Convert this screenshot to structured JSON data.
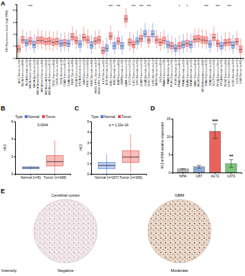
{
  "chart_data": [
    {
      "type": "box",
      "panel": "A",
      "y_label": "HK3 Expression Level (log2 TPM)",
      "categories": [
        "ACC.Tumor (n=79)",
        "BLCA.Tumor (n=408)",
        "BLCA.Normal (n=19)",
        "BRCA.Tumor (n=1093)",
        "BRCA.Normal (n=112)",
        "BRCA-Basal.Tumor (n=190)",
        "BRCA-Her2.Tumor (n=82)",
        "BRCA-LumA.Tumor (n=564)",
        "BRCA-LumB.Tumor (n=217)",
        "CESC.Tumor (n=304)",
        "CHOL.Tumor (n=36)",
        "CHOL.Normal (n=9)",
        "COAD.Tumor (n=457)",
        "COAD.Normal (n=41)",
        "DLBC.Tumor (n=48)",
        "ESCA.Tumor (n=184)",
        "ESCA.Normal (n=11)",
        "GBM.Tumor (n=153)",
        "HNSC.Tumor (n=520)",
        "HNSC.Normal (n=44)",
        "HNSC-HPV+.Tumor (n=97)",
        "HNSC-HPV-.Tumor (n=421)",
        "KICH.Tumor (n=66)",
        "KICH.Normal (n=25)",
        "KIRC.Tumor (n=533)",
        "KIRC.Normal (n=72)",
        "KIRP.Tumor (n=290)",
        "KIRP.Normal (n=32)",
        "LAML.Tumor (n=173)",
        "LGG.Tumor (n=516)",
        "LIHC.Tumor (n=371)",
        "LIHC.Normal (n=50)",
        "LUAD.Tumor (n=515)",
        "LUAD.Normal (n=59)",
        "LUSC.Tumor (n=501)",
        "LUSC.Normal (n=51)",
        "MESO.Tumor (n=87)",
        "OV.Tumor (n=303)",
        "PAAD.Tumor (n=178)",
        "PAAD.Normal (n=4)",
        "PCPG.Tumor (n=179)",
        "PCPG.Normal (n=3)",
        "PRAD.Tumor (n=497)",
        "PRAD.Normal (n=52)",
        "READ.Tumor (n=166)",
        "READ.Normal (n=10)",
        "SARC.Tumor (n=259)",
        "SKCM.Tumor (n=103)",
        "SKCM.Metastasis (n=368)",
        "STAD.Tumor (n=415)",
        "STAD.Normal (n=35)",
        "TGCT.Tumor (n=150)",
        "THCA.Tumor (n=501)",
        "THCA.Normal (n=59)",
        "THYM.Tumor (n=120)",
        "UCEC.Tumor (n=545)",
        "UCEC.Normal (n=35)",
        "UCS.Tumor (n=57)",
        "UVM.Tumor (n=80)"
      ],
      "low": [
        0.1,
        1.6,
        1.1,
        1.4,
        0.8,
        1.5,
        1.5,
        1.3,
        1.4,
        1.2,
        1.3,
        1.0,
        1.1,
        1.0,
        2.1,
        1.5,
        0.9,
        2.0,
        1.6,
        0.7,
        1.4,
        1.6,
        0.0,
        0.2,
        2.2,
        0.6,
        1.4,
        0.6,
        5.1,
        1.2,
        0.8,
        1.4,
        1.8,
        2.6,
        1.6,
        2.6,
        1.6,
        1.2,
        1.5,
        0.8,
        0.6,
        0.2,
        0.6,
        0.8,
        1.0,
        0.8,
        1.7,
        1.8,
        1.6,
        1.5,
        0.9,
        2.0,
        1.0,
        0.6,
        1.1,
        1.2,
        0.7,
        1.3,
        0.0
      ],
      "q1": [
        1.0,
        2.5,
        2.0,
        2.3,
        1.7,
        2.4,
        2.4,
        2.2,
        2.3,
        2.1,
        2.2,
        1.9,
        2.0,
        1.9,
        3.0,
        2.4,
        1.8,
        2.9,
        2.5,
        1.6,
        2.3,
        2.5,
        0.7,
        1.1,
        3.1,
        1.5,
        2.3,
        1.5,
        6.0,
        2.1,
        1.7,
        2.3,
        2.7,
        3.5,
        2.5,
        3.5,
        2.5,
        2.1,
        2.4,
        1.7,
        1.5,
        1.1,
        1.5,
        1.7,
        1.9,
        1.7,
        2.6,
        2.7,
        2.5,
        2.4,
        1.8,
        2.9,
        1.9,
        1.5,
        2.0,
        2.1,
        1.6,
        2.2,
        0.9
      ],
      "median": [
        1.5,
        3.0,
        2.5,
        2.8,
        2.2,
        2.9,
        2.9,
        2.7,
        2.8,
        2.6,
        2.7,
        2.4,
        2.5,
        2.4,
        3.5,
        2.9,
        2.3,
        3.4,
        3.0,
        2.1,
        2.8,
        3.0,
        1.2,
        1.6,
        3.6,
        2.0,
        2.8,
        2.0,
        6.5,
        2.6,
        2.2,
        2.8,
        3.2,
        4.0,
        3.0,
        4.0,
        3.0,
        2.6,
        2.9,
        2.2,
        2.0,
        1.6,
        2.0,
        2.2,
        2.4,
        2.2,
        3.1,
        3.2,
        3.0,
        2.9,
        2.3,
        3.4,
        2.4,
        2.0,
        2.5,
        2.6,
        2.1,
        2.7,
        1.4
      ],
      "q3": [
        2.1,
        3.6,
        3.1,
        3.4,
        2.8,
        3.5,
        3.5,
        3.3,
        3.4,
        3.2,
        3.3,
        3.0,
        3.1,
        3.0,
        4.1,
        3.5,
        2.9,
        4.0,
        3.6,
        2.7,
        3.4,
        3.6,
        1.8,
        2.2,
        4.2,
        2.6,
        3.4,
        2.6,
        7.1,
        3.2,
        2.8,
        3.4,
        3.8,
        4.6,
        3.6,
        4.6,
        3.6,
        3.2,
        3.5,
        2.8,
        2.6,
        2.2,
        2.6,
        2.8,
        3.0,
        2.8,
        3.7,
        3.8,
        3.6,
        3.5,
        2.9,
        4.0,
        3.0,
        2.6,
        3.1,
        3.2,
        2.7,
        3.3,
        2.0
      ],
      "high": [
        3.3,
        4.8,
        4.3,
        4.6,
        4.0,
        4.7,
        4.7,
        4.5,
        4.6,
        4.4,
        4.5,
        4.2,
        4.3,
        4.2,
        5.3,
        4.7,
        4.1,
        5.2,
        4.8,
        3.9,
        4.6,
        4.8,
        3.0,
        3.4,
        5.4,
        3.8,
        4.6,
        3.8,
        8.3,
        4.4,
        4.0,
        4.6,
        5.0,
        5.8,
        4.8,
        5.8,
        4.8,
        4.4,
        4.7,
        4.0,
        3.8,
        3.4,
        3.8,
        4.0,
        4.2,
        4.0,
        4.9,
        5.0,
        4.8,
        4.7,
        4.1,
        5.2,
        4.2,
        3.8,
        4.3,
        4.4,
        3.9,
        4.5,
        3.2
      ],
      "colors": [
        "#e8413b",
        "#e8413b",
        "#3b6fd6",
        "#e8413b",
        "#3b6fd6",
        "#e8413b",
        "#e8413b",
        "#e8413b",
        "#e8413b",
        "#e8413b",
        "#e8413b",
        "#3b6fd6",
        "#e8413b",
        "#3b6fd6",
        "#e8413b",
        "#e8413b",
        "#3b6fd6",
        "#e8413b",
        "#e8413b",
        "#3b6fd6",
        "#e8413b",
        "#e8413b",
        "#e8413b",
        "#3b6fd6",
        "#e8413b",
        "#3b6fd6",
        "#e8413b",
        "#3b6fd6",
        "#e8413b",
        "#e8413b",
        "#e8413b",
        "#3b6fd6",
        "#e8413b",
        "#3b6fd6",
        "#e8413b",
        "#3b6fd6",
        "#e8413b",
        "#e8413b",
        "#e8413b",
        "#3b6fd6",
        "#e8413b",
        "#3b6fd6",
        "#e8413b",
        "#3b6fd6",
        "#e8413b",
        "#3b6fd6",
        "#e8413b",
        "#e8413b",
        "#e8413b",
        "#e8413b",
        "#3b6fd6",
        "#e8413b",
        "#e8413b",
        "#3b6fd6",
        "#e8413b",
        "#e8413b",
        "#3b6fd6",
        "#e8413b",
        "#e8413b"
      ],
      "significance": [
        null,
        null,
        null,
        "***",
        null,
        null,
        null,
        null,
        null,
        null,
        null,
        null,
        null,
        null,
        null,
        null,
        null,
        null,
        null,
        null,
        null,
        null,
        null,
        null,
        "***",
        null,
        "***",
        null,
        null,
        null,
        "***",
        null,
        "***",
        null,
        "***",
        null,
        null,
        null,
        null,
        null,
        null,
        null,
        "*",
        null,
        "*",
        null,
        null,
        null,
        null,
        "***",
        null,
        null,
        "***",
        null,
        null,
        "***",
        null,
        null,
        null
      ],
      "ylim": [
        0,
        9
      ],
      "yticks": [
        0,
        2,
        4,
        6,
        8
      ]
    },
    {
      "type": "box",
      "panel": "B",
      "y_label": "HK3",
      "categories": [
        "Normal (n=5)",
        "Tumor (n=168)"
      ],
      "low": [
        0.5,
        0.1
      ],
      "q1": [
        0.6,
        0.9
      ],
      "median": [
        0.7,
        1.4
      ],
      "q3": [
        0.8,
        2.1
      ],
      "high": [
        0.9,
        3.8
      ],
      "colors": [
        "#3b6fd6",
        "#e8413b"
      ],
      "p_label": "0.0044",
      "legend": "top",
      "legend_title": "Type",
      "legend_entries": [
        "Normal",
        "Tumor"
      ],
      "ylim": [
        0,
        6
      ],
      "yticks": [
        0,
        2,
        4,
        6
      ]
    },
    {
      "type": "box",
      "panel": "C",
      "y_label": "HK3",
      "categories": [
        "Normal (n=207)",
        "Tumor (n=169)"
      ],
      "low": [
        0.0,
        0.2
      ],
      "q1": [
        0.5,
        1.1
      ],
      "median": [
        0.8,
        1.6
      ],
      "q3": [
        1.1,
        2.2
      ],
      "high": [
        1.9,
        3.8
      ],
      "colors": [
        "#3b6fd6",
        "#e8413b"
      ],
      "p_label": "p = 1.22e-16",
      "legend": "top",
      "legend_title": "Type",
      "legend_entries": [
        "Normal",
        "Tumor"
      ],
      "ylim": [
        0,
        5
      ],
      "yticks": [
        0,
        1,
        2,
        3,
        4,
        5
      ]
    },
    {
      "type": "bar",
      "panel": "D",
      "y_label": "HK3 mRNA relative expression",
      "categories": [
        "NHA",
        "U87",
        "A172",
        "U373"
      ],
      "values": [
        1,
        1.6,
        11.5,
        2.5
      ],
      "errors": [
        0,
        0.4,
        2.0,
        1.1
      ],
      "colors": [
        "#b5b5b5",
        "#8fa8d8",
        "#e8635a",
        "#7cc47c"
      ],
      "significance": [
        null,
        null,
        "***",
        "**"
      ],
      "ylim": [
        0,
        15
      ],
      "yticks": [
        0,
        5,
        10,
        15
      ]
    }
  ],
  "figure_e": {
    "panel": "E",
    "intensity_label": "Intensity",
    "images": [
      {
        "title": "Cerebral cortex",
        "intensity": "Negative"
      },
      {
        "title": "GBM",
        "intensity": "Moderate"
      }
    ]
  }
}
